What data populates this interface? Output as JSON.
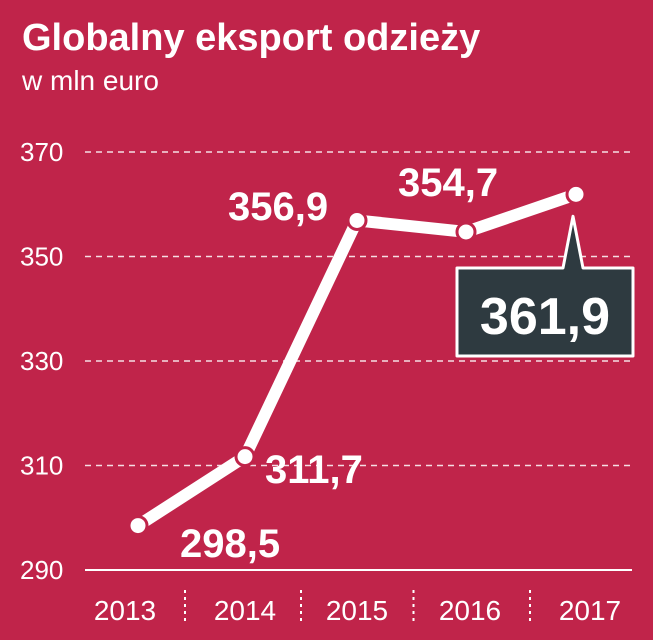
{
  "title": "Globalny eksport odzieży",
  "subtitle": "w mln euro",
  "colors": {
    "background": "#c0244a",
    "line": "#ffffff",
    "highlight_box": "#2e3a40"
  },
  "chart_data": {
    "type": "line",
    "title": "Globalny eksport odzieży",
    "subtitle": "w mln euro",
    "xlabel": "",
    "ylabel": "",
    "categories": [
      "2013",
      "2014",
      "2015",
      "2016",
      "2017"
    ],
    "x": [
      "2013",
      "2014",
      "2015",
      "2016",
      "2017"
    ],
    "values": [
      298.5,
      311.7,
      356.9,
      354.7,
      361.9
    ],
    "data_labels": [
      "298,5",
      "311,7",
      "356,9",
      "354,7",
      "361,9"
    ],
    "highlighted_label": "361,9",
    "yticks": [
      "290",
      "310",
      "330",
      "350",
      "370"
    ],
    "ylim": [
      290,
      370
    ],
    "grid": true
  }
}
